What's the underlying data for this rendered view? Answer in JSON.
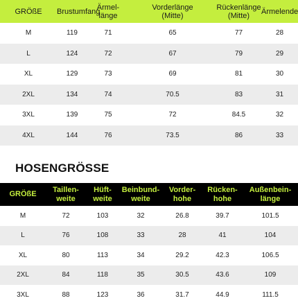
{
  "colors": {
    "accent": "#c4ee3e",
    "header_dark": "#000000",
    "stripe": "#ececec"
  },
  "top_table": {
    "headers": [
      "GRÖßE",
      "Brustumfang",
      "Ärmel-\nlänge",
      "Vorderlänge\n(Mitte)",
      "Rückenlänge\n(Mitte)",
      "Ärmelende"
    ],
    "rows": [
      [
        "M",
        "119",
        "71",
        "65",
        "77",
        "28"
      ],
      [
        "L",
        "124",
        "72",
        "67",
        "79",
        "29"
      ],
      [
        "XL",
        "129",
        "73",
        "69",
        "81",
        "30"
      ],
      [
        "2XL",
        "134",
        "74",
        "70.5",
        "83",
        "31"
      ],
      [
        "3XL",
        "139",
        "75",
        "72",
        "84.5",
        "32"
      ],
      [
        "4XL",
        "144",
        "76",
        "73.5",
        "86",
        "33"
      ]
    ]
  },
  "bottom_section": {
    "title": "HOSENGRÖSSE"
  },
  "bottom_table": {
    "headers": [
      "GRÖßE",
      "Taillen-\nweite",
      "Hüft-\nweite",
      "Beinbund-\nweite",
      "Vorder-\nhohe",
      "Rücken-\nhohe",
      "Außenbein-\nlänge"
    ],
    "rows": [
      [
        "M",
        "72",
        "103",
        "32",
        "26.8",
        "39.7",
        "101.5"
      ],
      [
        "L",
        "76",
        "108",
        "33",
        "28",
        "41",
        "104"
      ],
      [
        "XL",
        "80",
        "113",
        "34",
        "29.2",
        "42.3",
        "106.5"
      ],
      [
        "2XL",
        "84",
        "118",
        "35",
        "30.5",
        "43.6",
        "109"
      ],
      [
        "3XL",
        "88",
        "123",
        "36",
        "31.7",
        "44.9",
        "111.5"
      ]
    ]
  }
}
